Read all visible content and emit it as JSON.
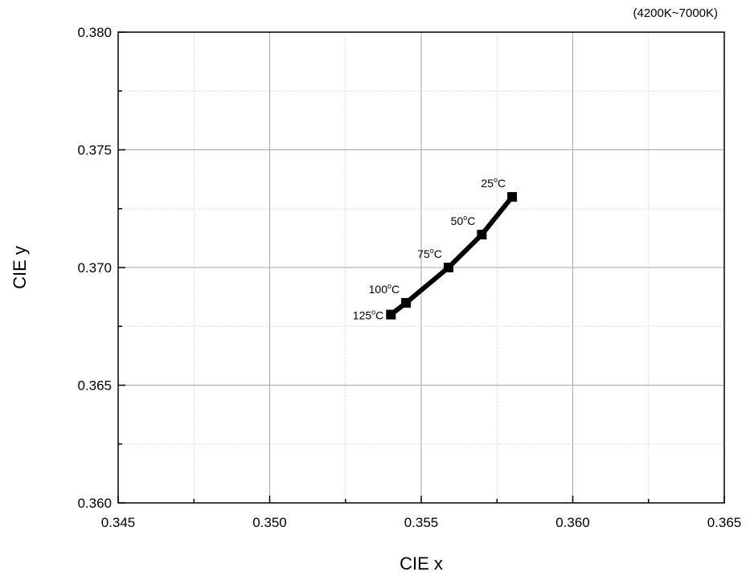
{
  "chart_data": {
    "type": "line",
    "title": "",
    "note": "(4200K~7000K)",
    "xlabel": "CIE x",
    "ylabel": "CIE y",
    "xlim": [
      0.345,
      0.365
    ],
    "ylim": [
      0.36,
      0.38
    ],
    "x_ticks": [
      "0.345",
      "0.350",
      "0.355",
      "0.360",
      "0.365"
    ],
    "y_ticks": [
      "0.360",
      "0.365",
      "0.370",
      "0.375",
      "0.380"
    ],
    "grid": true,
    "series": [
      {
        "marker": "square",
        "color": "#000000",
        "points": [
          {
            "x": 0.354,
            "y": 0.368,
            "temp": "125",
            "unit": "C"
          },
          {
            "x": 0.3545,
            "y": 0.3685,
            "temp": "100",
            "unit": "C"
          },
          {
            "x": 0.3559,
            "y": 0.37,
            "temp": "75",
            "unit": "C"
          },
          {
            "x": 0.357,
            "y": 0.3714,
            "temp": "50",
            "unit": "C"
          },
          {
            "x": 0.358,
            "y": 0.373,
            "temp": "25",
            "unit": "C"
          }
        ]
      }
    ]
  }
}
